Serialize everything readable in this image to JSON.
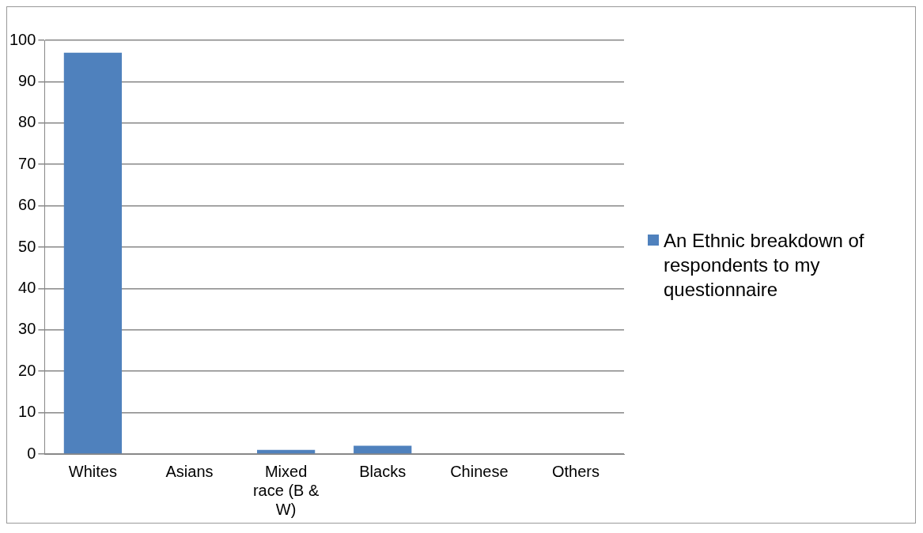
{
  "chart_data": {
    "type": "bar",
    "categories": [
      "Whites",
      "Asians",
      "Mixed race (B & W)",
      "Blacks",
      "Chinese",
      "Others"
    ],
    "series": [
      {
        "name": "An Ethnic breakdown of respondents to my questionnaire",
        "color": "#4f81bd",
        "values": [
          97,
          0,
          1,
          2,
          0,
          0
        ]
      }
    ],
    "ylim": [
      0,
      100
    ],
    "yticks": [
      0,
      10,
      20,
      30,
      40,
      50,
      60,
      70,
      80,
      90,
      100
    ],
    "grid": "y",
    "legend": "right"
  }
}
